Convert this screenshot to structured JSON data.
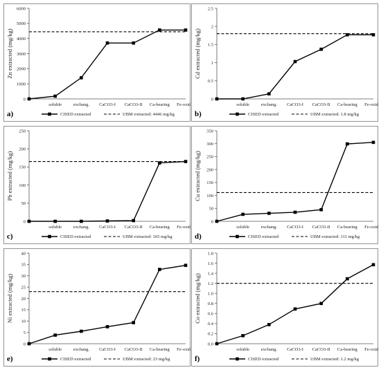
{
  "chart_data": [
    {
      "type": "line",
      "panel_label": "a)",
      "ylabel": "Zn extracted (mg/kg)",
      "categories": [
        "",
        "soluble",
        "exchang.",
        "CaCO3-I",
        "CaCO3-II",
        "Ca-bearing",
        "Fe-oxides"
      ],
      "ylim": [
        0,
        6000
      ],
      "yticks": [
        0,
        1000,
        2000,
        3000,
        4000,
        5000,
        6000
      ],
      "series": [
        {
          "name": "CISED extracted",
          "values": [
            0,
            180,
            1400,
            3700,
            3700,
            4560,
            4560
          ]
        },
        {
          "name": "UBM extracted:  4446 mg/kg",
          "reference": 4446
        }
      ],
      "legend": "bottom"
    },
    {
      "type": "line",
      "panel_label": "b)",
      "ylabel": "Cd extracted (mg/kg)",
      "categories": [
        "",
        "soluble",
        "exchang.",
        "CaCO3-I",
        "CaCO3-II",
        "Ca-bearing",
        "Fe-oxides"
      ],
      "ylim": [
        0,
        2.5
      ],
      "yticks": [
        "0",
        "0.5",
        "1",
        "1.5",
        "2",
        "2.5"
      ],
      "series": [
        {
          "name": "CISED extracted",
          "values": [
            0,
            0.0,
            0.14,
            1.03,
            1.37,
            1.77,
            1.77
          ]
        },
        {
          "name": "UBM extracted:  1.8 mg/kg",
          "reference": 1.8
        }
      ],
      "legend": "bottom"
    },
    {
      "type": "line",
      "panel_label": "c)",
      "ylabel": "Pb extracted (mg/kg)",
      "categories": [
        "",
        "soluble",
        "exchang.",
        "CaCO3-I",
        "CaCO3-II",
        "Ca-bearing",
        "Fe-oxides"
      ],
      "ylim": [
        0,
        250
      ],
      "yticks": [
        0,
        50,
        100,
        150,
        200,
        250
      ],
      "series": [
        {
          "name": "CISED extracted",
          "values": [
            0,
            0,
            0,
            1,
            2,
            161,
            165
          ]
        },
        {
          "name": "UBM extracted:  165 mg/kg",
          "reference": 165
        }
      ],
      "legend": "bottom"
    },
    {
      "type": "line",
      "panel_label": "d)",
      "ylabel": "Cu extracted (mg/kg)",
      "categories": [
        "",
        "soluble",
        "exchang.",
        "CaCO3-I",
        "CaCO3-II",
        "Ca-bearing",
        "Fe-oxides"
      ],
      "ylim": [
        0,
        350
      ],
      "yticks": [
        0,
        50,
        100,
        150,
        200,
        250,
        300,
        350
      ],
      "series": [
        {
          "name": "CISED extracted",
          "values": [
            0,
            27,
            31,
            35,
            45,
            299,
            305
          ]
        },
        {
          "name": "UBM extracted:  111 mg/kg",
          "reference": 111
        }
      ],
      "legend": "bottom"
    },
    {
      "type": "line",
      "panel_label": "e)",
      "ylabel": "Ni extracted (mg/kg)",
      "categories": [
        "",
        "soluble",
        "exchang.",
        "CaCO3-I",
        "CaCO3-II",
        "Ca-bearing",
        "Fe-oxides"
      ],
      "ylim": [
        0,
        40
      ],
      "yticks": [
        0,
        5,
        10,
        15,
        20,
        25,
        30,
        35,
        40
      ],
      "series": [
        {
          "name": "CISED extracted",
          "values": [
            0,
            3.8,
            5.5,
            7.5,
            9.3,
            32.8,
            34.6
          ]
        },
        {
          "name": "UBM extracted:  23 mg/kg",
          "reference": 23
        }
      ],
      "legend": "bottom"
    },
    {
      "type": "line",
      "panel_label": "f)",
      "ylabel": "Co extracted (mg/kg)",
      "categories": [
        "",
        "soluble",
        "exchang.",
        "CaCO3-I",
        "CaCO3-II",
        "Ca-bearing",
        "Fe-oxides"
      ],
      "ylim": [
        0,
        1.8
      ],
      "yticks": [
        "0.0",
        "0.2",
        "0.4",
        "0.6",
        "0.8",
        "1.0",
        "1.2",
        "1.4",
        "1.6",
        "1.8"
      ],
      "series": [
        {
          "name": "CISED extracted",
          "values": [
            0,
            0.16,
            0.38,
            0.69,
            0.8,
            1.29,
            1.57
          ]
        },
        {
          "name": "UBM extracted:  1.2 mg/kg",
          "reference": 1.2
        }
      ],
      "legend": "bottom"
    }
  ]
}
